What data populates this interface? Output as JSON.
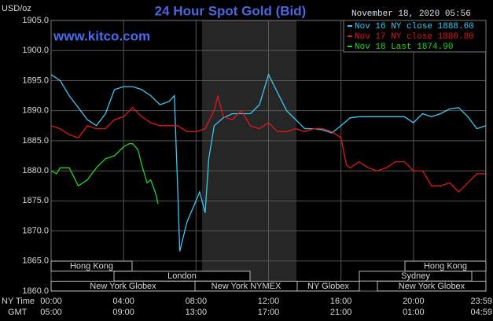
{
  "chart_data": {
    "type": "line",
    "title": "24 Hour Spot Gold (Bid)",
    "watermark": "www.kitco.com",
    "timestamp": "November 18, 2020 05:56",
    "ylabel": "USD/oz",
    "xlabel": "NY Time",
    "x2label": "GMT",
    "xlim": [
      0,
      24
    ],
    "ylim": [
      1860,
      1905
    ],
    "yticks": [
      {
        "value": 1860,
        "label": "1860.0"
      },
      {
        "value": 1865,
        "label": "1865.0"
      },
      {
        "value": 1870,
        "label": "1870.0"
      },
      {
        "value": 1875,
        "label": "1875.0"
      },
      {
        "value": 1880,
        "label": "1880.0"
      },
      {
        "value": 1885,
        "label": "1885.0"
      },
      {
        "value": 1890,
        "label": "1890.0"
      },
      {
        "value": 1895,
        "label": "1895.0"
      },
      {
        "value": 1900,
        "label": "1900.0"
      },
      {
        "value": 1905,
        "label": "1905.0"
      }
    ],
    "xticks": [
      {
        "value": 0,
        "label": "00:00"
      },
      {
        "value": 4,
        "label": "04:00"
      },
      {
        "value": 8,
        "label": "08:00"
      },
      {
        "value": 12,
        "label": "12:00"
      },
      {
        "value": 16,
        "label": "16:00"
      },
      {
        "value": 20,
        "label": "20:00"
      },
      {
        "value": 23.98,
        "label": "23:59"
      }
    ],
    "x2ticks": [
      {
        "value": 0,
        "label": "05:00"
      },
      {
        "value": 4,
        "label": "09:00"
      },
      {
        "value": 8,
        "label": "13:00"
      },
      {
        "value": 12,
        "label": "17:00"
      },
      {
        "value": 16,
        "label": "21:00"
      },
      {
        "value": 20,
        "label": "01:00"
      },
      {
        "value": 23.98,
        "label": "04:59"
      }
    ],
    "grid": true,
    "legend": "upper right",
    "series": [
      {
        "name": "Nov 16 NY close 1888.60",
        "color": "#3ec6f2",
        "x": [
          0,
          0.5,
          1,
          1.5,
          2,
          2.5,
          3,
          3.5,
          4,
          4.5,
          5,
          5.5,
          6,
          6.5,
          6.8,
          7,
          7.1,
          7.5,
          8,
          8.2,
          8.5,
          8.7,
          9,
          9.5,
          10,
          10.5,
          11,
          11.5,
          12,
          12.5,
          13,
          13.5,
          14,
          14.5,
          15,
          15.5,
          16,
          16.5,
          17,
          17.5,
          18,
          18.5,
          19,
          19.5,
          20,
          20.5,
          21,
          21.5,
          22,
          22.5,
          23,
          23.5,
          23.98
        ],
        "values": [
          1896,
          1895,
          1892.5,
          1890.5,
          1888.5,
          1887.5,
          1889.5,
          1893.5,
          1894,
          1894,
          1893.5,
          1892.5,
          1891,
          1891.5,
          1892.5,
          1876,
          1866.6,
          1871.5,
          1875,
          1876.5,
          1873,
          1882,
          1887.5,
          1888.8,
          1889.5,
          1889.5,
          1889.5,
          1891,
          1896,
          1893,
          1890,
          1888.5,
          1887,
          1887,
          1886.8,
          1886.3,
          1887.5,
          1888.8,
          1889,
          1889,
          1889,
          1889,
          1889,
          1889,
          1888,
          1889.5,
          1889,
          1889.5,
          1890.3,
          1890.5,
          1889,
          1887,
          1887.5
        ]
      },
      {
        "name": "Nov 17 NY close 1880.80",
        "color": "#e01818",
        "x": [
          0,
          0.5,
          1,
          1.5,
          2,
          2.5,
          3,
          3.5,
          4,
          4.5,
          5,
          5.5,
          6,
          6.5,
          7,
          7.5,
          8,
          8.5,
          9,
          9.2,
          9.5,
          10,
          10.5,
          11,
          11.5,
          12,
          12.5,
          13,
          13.5,
          14,
          14.5,
          15,
          15.5,
          16,
          16.3,
          16.5,
          17,
          17.5,
          18,
          18.5,
          19,
          19.5,
          20,
          20.5,
          21,
          21.5,
          22,
          22.5,
          23,
          23.5,
          23.98
        ],
        "values": [
          1887.5,
          1887,
          1886,
          1885.5,
          1887.5,
          1887,
          1887,
          1888.5,
          1889,
          1890.5,
          1889,
          1888,
          1887.5,
          1887.5,
          1887.5,
          1886.5,
          1886.5,
          1887,
          1890,
          1892.5,
          1889,
          1888.5,
          1890,
          1887.5,
          1887,
          1888,
          1886.5,
          1886.5,
          1887,
          1886.5,
          1887,
          1887,
          1886.5,
          1885.5,
          1881,
          1880.5,
          1881.5,
          1880.5,
          1880,
          1880.5,
          1881.5,
          1881.5,
          1880,
          1880,
          1877.5,
          1877.5,
          1878,
          1876.5,
          1878,
          1879.5,
          1879.5
        ]
      },
      {
        "name": "Nov 18 Last 1874.90",
        "color": "#22d422",
        "x": [
          0,
          0.3,
          0.5,
          1,
          1.5,
          2,
          2.5,
          3,
          3.5,
          4,
          4.3,
          4.5,
          4.8,
          5,
          5.3,
          5.5,
          5.8,
          5.9
        ],
        "values": [
          1880,
          1879.5,
          1880.5,
          1880.5,
          1877.5,
          1878.5,
          1880.5,
          1882,
          1882.5,
          1884,
          1884.5,
          1884.5,
          1883.5,
          1881,
          1878,
          1878.5,
          1876,
          1874.5
        ]
      }
    ],
    "sessions": [
      {
        "label": "Hong Kong"
      },
      {
        "label": "Hong Kong"
      },
      {
        "label": "London"
      },
      {
        "label": "Sydney"
      },
      {
        "label": "New York Globex"
      },
      {
        "label": "New York NYMEX"
      },
      {
        "label": "NY Globex"
      },
      {
        "label": "New York Globex"
      }
    ]
  }
}
